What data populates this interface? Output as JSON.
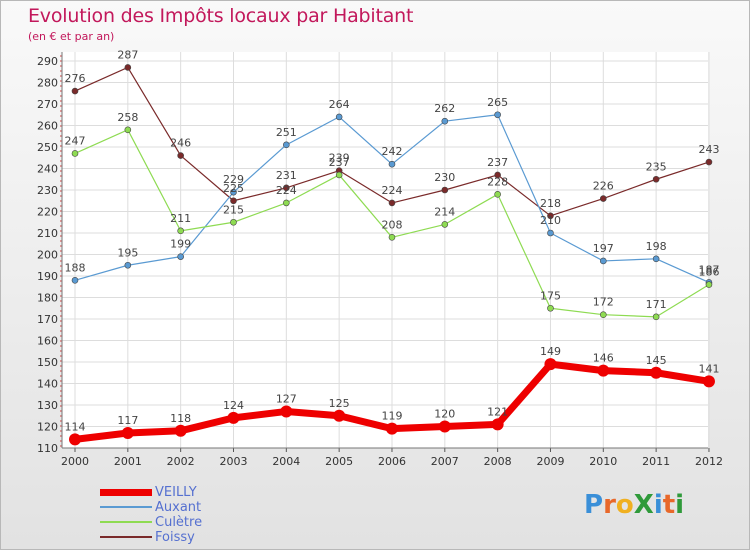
{
  "header": {
    "title": "Evolution des Impôts locaux par Habitant",
    "subtitle": "(en € et par an)"
  },
  "logo": {
    "text": "ProXiti",
    "colors": [
      "#3a8fd8",
      "#e8682a",
      "#f0b020",
      "#2f9a3a",
      "#3a8fd8",
      "#e8682a",
      "#2f9a3a"
    ]
  },
  "chart_data": {
    "type": "line",
    "title": "Evolution des Impôts locaux par Habitant",
    "subtitle": "(en € et par an)",
    "xlabel": "",
    "ylabel": "",
    "x": [
      "2000",
      "2001",
      "2002",
      "2003",
      "2004",
      "2005",
      "2006",
      "2007",
      "2008",
      "2009",
      "2010",
      "2011",
      "2012"
    ],
    "ylim": [
      110,
      290
    ],
    "yticks": [
      110,
      120,
      130,
      140,
      150,
      160,
      170,
      180,
      190,
      200,
      210,
      220,
      230,
      240,
      250,
      260,
      270,
      280,
      290
    ],
    "grid": true,
    "legend_position": "bottom-left",
    "series": [
      {
        "name": "VEILLY",
        "color": "#ee0000",
        "values": [
          114,
          117,
          118,
          124,
          127,
          125,
          119,
          120,
          121,
          149,
          146,
          145,
          141
        ]
      },
      {
        "name": "Auxant",
        "color": "#5a9ad2",
        "values": [
          188,
          195,
          199,
          229,
          251,
          264,
          242,
          262,
          265,
          210,
          197,
          198,
          187
        ]
      },
      {
        "name": "Culètre",
        "color": "#8edb52",
        "values": [
          247,
          258,
          211,
          215,
          224,
          237,
          208,
          214,
          228,
          175,
          172,
          171,
          186
        ]
      },
      {
        "name": "Foissy",
        "color": "#7a2a2a",
        "values": [
          276,
          287,
          246,
          225,
          231,
          239,
          224,
          230,
          237,
          218,
          226,
          235,
          243
        ]
      }
    ]
  }
}
